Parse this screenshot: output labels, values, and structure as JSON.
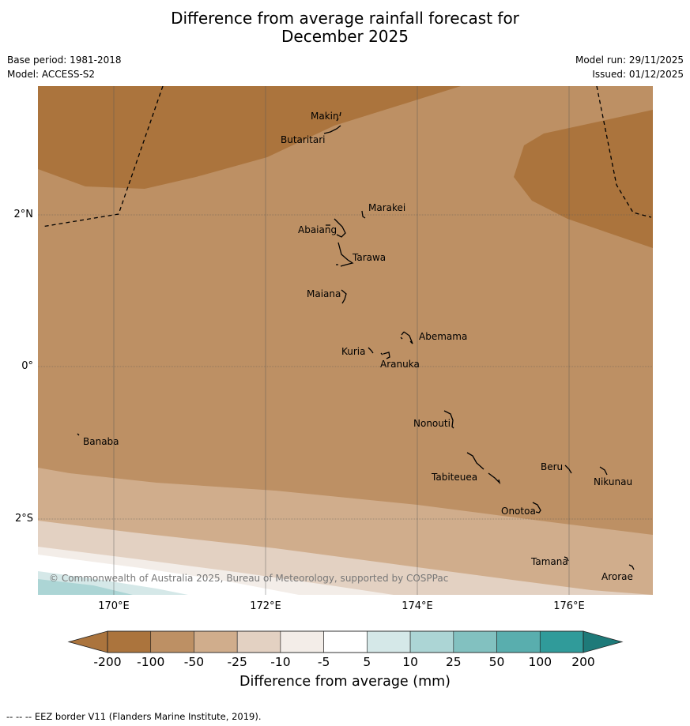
{
  "title_line1": "Difference from average rainfall forecast for",
  "title_line2": "December 2025",
  "base_period": "Base period: 1981-2018",
  "model": "Model: ACCESS-S2",
  "model_run": "Model run: 29/11/2025",
  "issued": "Issued: 01/12/2025",
  "copyright": "© Commonwealth of Australia 2025, Bureau of Meteorology, supported by COSPPac",
  "lon_labels": [
    "170°E",
    "172°E",
    "174°E",
    "176°E"
  ],
  "lat_labels": [
    "2°N",
    "0°",
    "2°S"
  ],
  "islands": [
    "Makin",
    "Butaritari",
    "Marakei",
    "Abaiang",
    "Tarawa",
    "Maiana",
    "Abemama",
    "Kuria",
    "Aranuka",
    "Nonouti",
    "Banaba",
    "Beru",
    "Nikunau",
    "Tabiteuea",
    "Onotoa",
    "Tamana",
    "Arorae"
  ],
  "colorbar": {
    "ticks": [
      "-200",
      "-100",
      "-50",
      "-25",
      "-10",
      "-5",
      "5",
      "10",
      "25",
      "50",
      "100",
      "200"
    ],
    "colors": [
      "#ab743d",
      "#bd9064",
      "#d0ad8c",
      "#e3d1c2",
      "#f3ede8",
      "#ffffff",
      "#d5e8e8",
      "#acd5d5",
      "#82c1c0",
      "#59aeae",
      "#309b9a",
      "#1e7a79"
    ],
    "title": "Difference from average (mm)"
  },
  "footnote": "--  --  -- EEZ border V11 (Flanders Marine Institute, 2019)."
}
